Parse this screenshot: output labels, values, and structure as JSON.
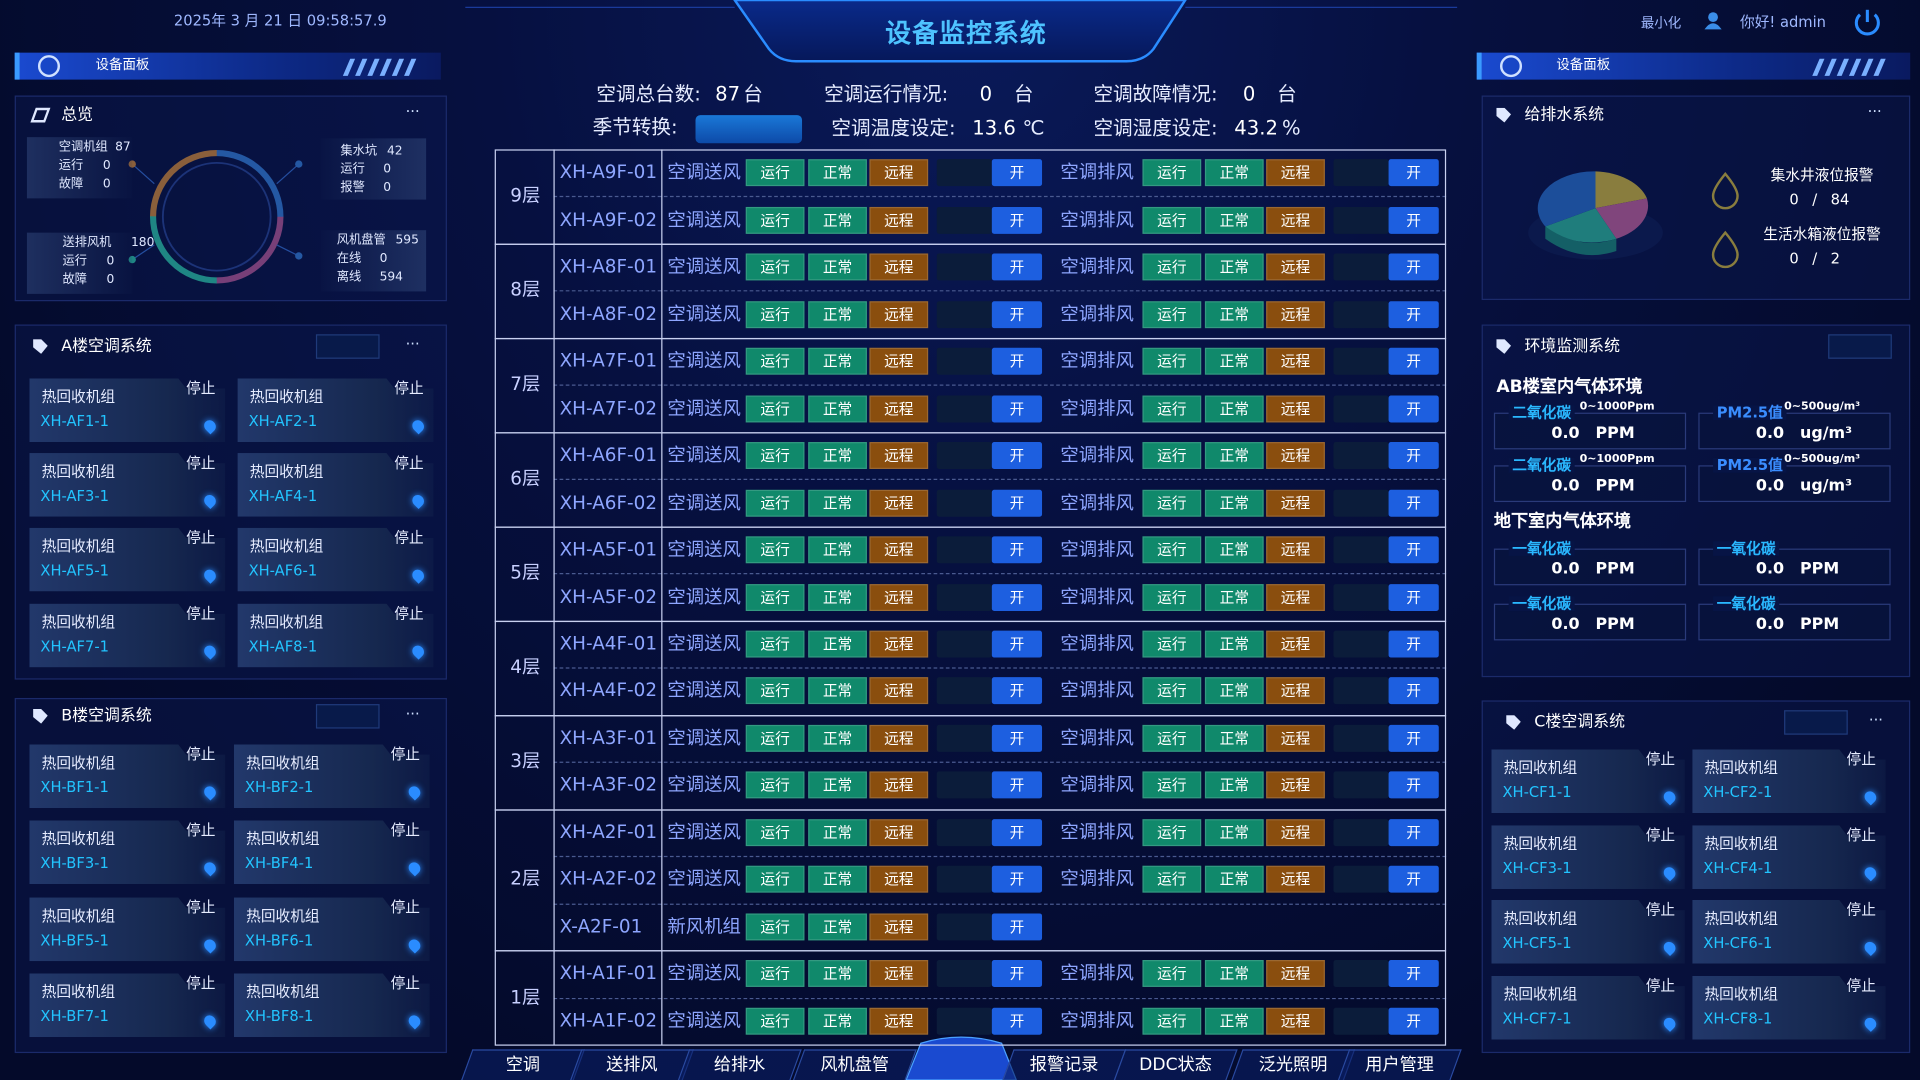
{
  "header": {
    "datetime": "2025年 3 月 21 日  09:58:57.9",
    "title": "设备监控系统",
    "minimize": "最小化",
    "greeting": "你好! admin"
  },
  "left": {
    "panel_title": "设备面板",
    "overview": {
      "title": "总览",
      "more": "···",
      "groups": [
        {
          "name": "空调机组",
          "total": 87,
          "rows": [
            {
              "label": "运行",
              "value": 0
            },
            {
              "label": "故障",
              "value": 0
            }
          ]
        },
        {
          "name": "集水坑",
          "total": 42,
          "rows": [
            {
              "label": "运行",
              "value": 0
            },
            {
              "label": "报警",
              "value": 0
            }
          ]
        },
        {
          "name": "送排风机",
          "total": 180,
          "rows": [
            {
              "label": "运行",
              "value": 0
            },
            {
              "label": "故障",
              "value": 0
            }
          ]
        },
        {
          "name": "风机盘管",
          "total": 595,
          "rows": [
            {
              "label": "在线",
              "value": 0
            },
            {
              "label": "离线",
              "value": 594
            }
          ]
        }
      ]
    },
    "systems": [
      {
        "title": "A楼空调系统",
        "more": "···",
        "units": [
          {
            "label": "热回收机组",
            "status": "停止",
            "id": "XH-AF1-1"
          },
          {
            "label": "热回收机组",
            "status": "停止",
            "id": "XH-AF2-1"
          },
          {
            "label": "热回收机组",
            "status": "停止",
            "id": "XH-AF3-1"
          },
          {
            "label": "热回收机组",
            "status": "停止",
            "id": "XH-AF4-1"
          },
          {
            "label": "热回收机组",
            "status": "停止",
            "id": "XH-AF5-1"
          },
          {
            "label": "热回收机组",
            "status": "停止",
            "id": "XH-AF6-1"
          },
          {
            "label": "热回收机组",
            "status": "停止",
            "id": "XH-AF7-1"
          },
          {
            "label": "热回收机组",
            "status": "停止",
            "id": "XH-AF8-1"
          }
        ]
      },
      {
        "title": "B楼空调系统",
        "more": "···",
        "units": [
          {
            "label": "热回收机组",
            "status": "停止",
            "id": "XH-BF1-1"
          },
          {
            "label": "热回收机组",
            "status": "停止",
            "id": "XH-BF2-1"
          },
          {
            "label": "热回收机组",
            "status": "停止",
            "id": "XH-BF3-1"
          },
          {
            "label": "热回收机组",
            "status": "停止",
            "id": "XH-BF4-1"
          },
          {
            "label": "热回收机组",
            "status": "停止",
            "id": "XH-BF5-1"
          },
          {
            "label": "热回收机组",
            "status": "停止",
            "id": "XH-BF6-1"
          },
          {
            "label": "热回收机组",
            "status": "停止",
            "id": "XH-BF7-1"
          },
          {
            "label": "热回收机组",
            "status": "停止",
            "id": "XH-BF8-1"
          }
        ]
      }
    ]
  },
  "center": {
    "stats": [
      {
        "label": "空调总台数:",
        "value": 87,
        "unit": "台"
      },
      {
        "label": "空调运行情况:",
        "value": 0,
        "unit": "台"
      },
      {
        "label": "空调故障情况:",
        "value": 0,
        "unit": "台"
      },
      {
        "label": "空调温度设定:",
        "value": 13.6,
        "unit": "℃"
      },
      {
        "label": "空调湿度设定:",
        "value": 43.2,
        "unit": "%"
      }
    ],
    "season_label": "季节转换:",
    "table": {
      "floors": [
        {
          "label": "9层",
          "rows": [
            {
              "id": "XH-A9F-01",
              "groups": [
                {
                  "name": "空调送风",
                  "states": [
                    "运行",
                    "正常",
                    "远程"
                  ],
                  "switch": "开"
                },
                {
                  "name": "空调排风",
                  "states": [
                    "运行",
                    "正常",
                    "远程"
                  ],
                  "switch": "开"
                }
              ]
            },
            {
              "id": "XH-A9F-02",
              "groups": [
                {
                  "name": "空调送风",
                  "states": [
                    "运行",
                    "正常",
                    "远程"
                  ],
                  "switch": "开"
                },
                {
                  "name": "空调排风",
                  "states": [
                    "运行",
                    "正常",
                    "远程"
                  ],
                  "switch": "开"
                }
              ]
            }
          ]
        },
        {
          "label": "8层",
          "rows": [
            {
              "id": "XH-A8F-01",
              "groups": [
                {
                  "name": "空调送风",
                  "states": [
                    "运行",
                    "正常",
                    "远程"
                  ],
                  "switch": "开"
                },
                {
                  "name": "空调排风",
                  "states": [
                    "运行",
                    "正常",
                    "远程"
                  ],
                  "switch": "开"
                }
              ]
            },
            {
              "id": "XH-A8F-02",
              "groups": [
                {
                  "name": "空调送风",
                  "states": [
                    "运行",
                    "正常",
                    "远程"
                  ],
                  "switch": "开"
                },
                {
                  "name": "空调排风",
                  "states": [
                    "运行",
                    "正常",
                    "远程"
                  ],
                  "switch": "开"
                }
              ]
            }
          ]
        },
        {
          "label": "7层",
          "rows": [
            {
              "id": "XH-A7F-01",
              "groups": [
                {
                  "name": "空调送风",
                  "states": [
                    "运行",
                    "正常",
                    "远程"
                  ],
                  "switch": "开"
                },
                {
                  "name": "空调排风",
                  "states": [
                    "运行",
                    "正常",
                    "远程"
                  ],
                  "switch": "开"
                }
              ]
            },
            {
              "id": "XH-A7F-02",
              "groups": [
                {
                  "name": "空调送风",
                  "states": [
                    "运行",
                    "正常",
                    "远程"
                  ],
                  "switch": "开"
                },
                {
                  "name": "空调排风",
                  "states": [
                    "运行",
                    "正常",
                    "远程"
                  ],
                  "switch": "开"
                }
              ]
            }
          ]
        },
        {
          "label": "6层",
          "rows": [
            {
              "id": "XH-A6F-01",
              "groups": [
                {
                  "name": "空调送风",
                  "states": [
                    "运行",
                    "正常",
                    "远程"
                  ],
                  "switch": "开"
                },
                {
                  "name": "空调排风",
                  "states": [
                    "运行",
                    "正常",
                    "远程"
                  ],
                  "switch": "开"
                }
              ]
            },
            {
              "id": "XH-A6F-02",
              "groups": [
                {
                  "name": "空调送风",
                  "states": [
                    "运行",
                    "正常",
                    "远程"
                  ],
                  "switch": "开"
                },
                {
                  "name": "空调排风",
                  "states": [
                    "运行",
                    "正常",
                    "远程"
                  ],
                  "switch": "开"
                }
              ]
            }
          ]
        },
        {
          "label": "5层",
          "rows": [
            {
              "id": "XH-A5F-01",
              "groups": [
                {
                  "name": "空调送风",
                  "states": [
                    "运行",
                    "正常",
                    "远程"
                  ],
                  "switch": "开"
                },
                {
                  "name": "空调排风",
                  "states": [
                    "运行",
                    "正常",
                    "远程"
                  ],
                  "switch": "开"
                }
              ]
            },
            {
              "id": "XH-A5F-02",
              "groups": [
                {
                  "name": "空调送风",
                  "states": [
                    "运行",
                    "正常",
                    "远程"
                  ],
                  "switch": "开"
                },
                {
                  "name": "空调排风",
                  "states": [
                    "运行",
                    "正常",
                    "远程"
                  ],
                  "switch": "开"
                }
              ]
            }
          ]
        },
        {
          "label": "4层",
          "rows": [
            {
              "id": "XH-A4F-01",
              "groups": [
                {
                  "name": "空调送风",
                  "states": [
                    "运行",
                    "正常",
                    "远程"
                  ],
                  "switch": "开"
                },
                {
                  "name": "空调排风",
                  "states": [
                    "运行",
                    "正常",
                    "远程"
                  ],
                  "switch": "开"
                }
              ]
            },
            {
              "id": "XH-A4F-02",
              "groups": [
                {
                  "name": "空调送风",
                  "states": [
                    "运行",
                    "正常",
                    "远程"
                  ],
                  "switch": "开"
                },
                {
                  "name": "空调排风",
                  "states": [
                    "运行",
                    "正常",
                    "远程"
                  ],
                  "switch": "开"
                }
              ]
            }
          ]
        },
        {
          "label": "3层",
          "rows": [
            {
              "id": "XH-A3F-01",
              "groups": [
                {
                  "name": "空调送风",
                  "states": [
                    "运行",
                    "正常",
                    "远程"
                  ],
                  "switch": "开"
                },
                {
                  "name": "空调排风",
                  "states": [
                    "运行",
                    "正常",
                    "远程"
                  ],
                  "switch": "开"
                }
              ]
            },
            {
              "id": "XH-A3F-02",
              "groups": [
                {
                  "name": "空调送风",
                  "states": [
                    "运行",
                    "正常",
                    "远程"
                  ],
                  "switch": "开"
                },
                {
                  "name": "空调排风",
                  "states": [
                    "运行",
                    "正常",
                    "远程"
                  ],
                  "switch": "开"
                }
              ]
            }
          ]
        },
        {
          "label": "2层",
          "rows": [
            {
              "id": "XH-A2F-01",
              "groups": [
                {
                  "name": "空调送风",
                  "states": [
                    "运行",
                    "正常",
                    "远程"
                  ],
                  "switch": "开"
                },
                {
                  "name": "空调排风",
                  "states": [
                    "运行",
                    "正常",
                    "远程"
                  ],
                  "switch": "开"
                }
              ]
            },
            {
              "id": "XH-A2F-02",
              "groups": [
                {
                  "name": "空调送风",
                  "states": [
                    "运行",
                    "正常",
                    "远程"
                  ],
                  "switch": "开"
                },
                {
                  "name": "空调排风",
                  "states": [
                    "运行",
                    "正常",
                    "远程"
                  ],
                  "switch": "开"
                }
              ]
            },
            {
              "id": "X-A2F-01",
              "groups": [
                {
                  "name": "新风机组",
                  "states": [
                    "运行",
                    "正常",
                    "远程"
                  ],
                  "switch": "开"
                }
              ]
            }
          ]
        },
        {
          "label": "1层",
          "rows": [
            {
              "id": "XH-A1F-01",
              "groups": [
                {
                  "name": "空调送风",
                  "states": [
                    "运行",
                    "正常",
                    "远程"
                  ],
                  "switch": "开"
                },
                {
                  "name": "空调排风",
                  "states": [
                    "运行",
                    "正常",
                    "远程"
                  ],
                  "switch": "开"
                }
              ]
            },
            {
              "id": "XH-A1F-02",
              "groups": [
                {
                  "name": "空调送风",
                  "states": [
                    "运行",
                    "正常",
                    "远程"
                  ],
                  "switch": "开"
                },
                {
                  "name": "空调排风",
                  "states": [
                    "运行",
                    "正常",
                    "远程"
                  ],
                  "switch": "开"
                }
              ]
            }
          ]
        }
      ]
    }
  },
  "nav": [
    "空调",
    "送排风",
    "给排水",
    "风机盘管",
    "报警记录",
    "DDC状态",
    "泛光照明",
    "用户管理"
  ],
  "right": {
    "panel_title": "设备面板",
    "water": {
      "title": "给排水系统",
      "more": "···",
      "alarms": [
        {
          "name": "集水井液位报警",
          "current": 0,
          "separator": "/",
          "total": 84
        },
        {
          "name": "生活水箱液位报警",
          "current": 0,
          "separator": "/",
          "total": 2
        }
      ]
    },
    "env": {
      "title": "环境监测系统",
      "sections": [
        {
          "title": "AB楼室内气体环境",
          "sensors": [
            {
              "name": "二氧化碳",
              "range": "0~1000Ppm",
              "value": "0.0",
              "unit": "PPM"
            },
            {
              "name": "PM2.5值",
              "range": "0~500ug/m³",
              "value": "0.0",
              "unit": "ug/m³"
            },
            {
              "name": "二氧化碳",
              "range": "0~1000Ppm",
              "value": "0.0",
              "unit": "PPM"
            },
            {
              "name": "PM2.5值",
              "range": "0~500ug/m³",
              "value": "0.0",
              "unit": "ug/m³"
            }
          ]
        },
        {
          "title": "地下室内气体环境",
          "sensors": [
            {
              "name": "一氧化碳",
              "value": "0.0",
              "unit": "PPM"
            },
            {
              "name": "一氧化碳",
              "value": "0.0",
              "unit": "PPM"
            },
            {
              "name": "一氧化碳",
              "value": "0.0",
              "unit": "PPM"
            },
            {
              "name": "一氧化碳",
              "value": "0.0",
              "unit": "PPM"
            }
          ]
        }
      ]
    },
    "system": {
      "title": "C楼空调系统",
      "more": "···",
      "units": [
        {
          "label": "热回收机组",
          "status": "停止",
          "id": "XH-CF1-1"
        },
        {
          "label": "热回收机组",
          "status": "停止",
          "id": "XH-CF2-1"
        },
        {
          "label": "热回收机组",
          "status": "停止",
          "id": "XH-CF3-1"
        },
        {
          "label": "热回收机组",
          "status": "停止",
          "id": "XH-CF4-1"
        },
        {
          "label": "热回收机组",
          "status": "停止",
          "id": "XH-CF5-1"
        },
        {
          "label": "热回收机组",
          "status": "停止",
          "id": "XH-CF6-1"
        },
        {
          "label": "热回收机组",
          "status": "停止",
          "id": "XH-CF7-1"
        },
        {
          "label": "热回收机组",
          "status": "停止",
          "id": "XH-CF8-1"
        }
      ]
    }
  }
}
